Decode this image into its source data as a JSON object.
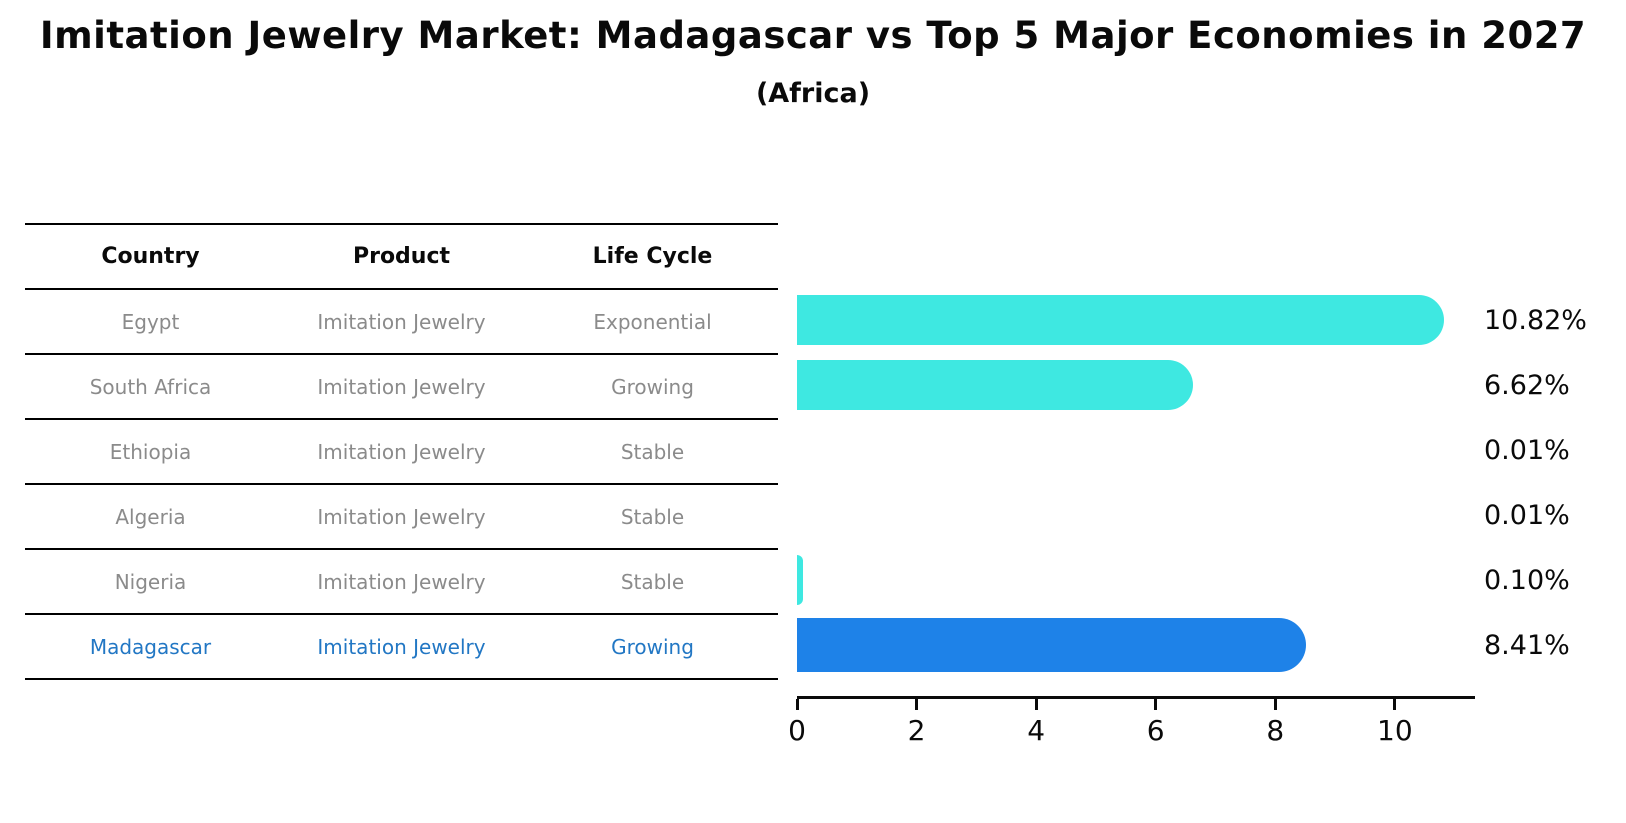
{
  "title": "Imitation Jewelry Market: Madagascar vs Top 5 Major Economies in 2027",
  "subtitle": "(Africa)",
  "table": {
    "headers": [
      "Country",
      "Product",
      "Life Cycle"
    ],
    "rows": [
      {
        "country": "Egypt",
        "product": "Imitation Jewelry",
        "life_cycle": "Exponential",
        "highlighted": false
      },
      {
        "country": "South Africa",
        "product": "Imitation Jewelry",
        "life_cycle": "Growing",
        "highlighted": false
      },
      {
        "country": "Ethiopia",
        "product": "Imitation Jewelry",
        "life_cycle": "Stable",
        "highlighted": false
      },
      {
        "country": "Algeria",
        "product": "Imitation Jewelry",
        "life_cycle": "Stable",
        "highlighted": false
      },
      {
        "country": "Nigeria",
        "product": "Imitation Jewelry",
        "life_cycle": "Stable",
        "highlighted": false
      },
      {
        "country": "Madagascar",
        "product": "Imitation Jewelry",
        "life_cycle": "Growing",
        "highlighted": true
      }
    ]
  },
  "chart_data": {
    "type": "bar",
    "orientation": "horizontal",
    "title": "Imitation Jewelry Market: Madagascar vs Top 5 Major Economies in 2027",
    "subtitle": "(Africa)",
    "categories": [
      "Egypt",
      "South Africa",
      "Ethiopia",
      "Algeria",
      "Nigeria",
      "Madagascar"
    ],
    "values": [
      10.82,
      6.62,
      0.01,
      0.01,
      0.1,
      8.41
    ],
    "value_labels": [
      "10.82%",
      "6.62%",
      "0.01%",
      "0.01%",
      "0.10%",
      "8.41%"
    ],
    "xlabel": "",
    "ylabel": "",
    "xlim": [
      0,
      11.34
    ],
    "xticks": [
      0,
      2,
      4,
      6,
      8,
      10
    ],
    "grid": false,
    "legend": "none",
    "highlight_index": 5
  },
  "colors": {
    "bar": "#3ee8e1",
    "highlight_bar": "#1e82e8",
    "highlight_text": "#2277c4",
    "text": "#0a0a0a",
    "muted_text": "#8b8b8b"
  }
}
